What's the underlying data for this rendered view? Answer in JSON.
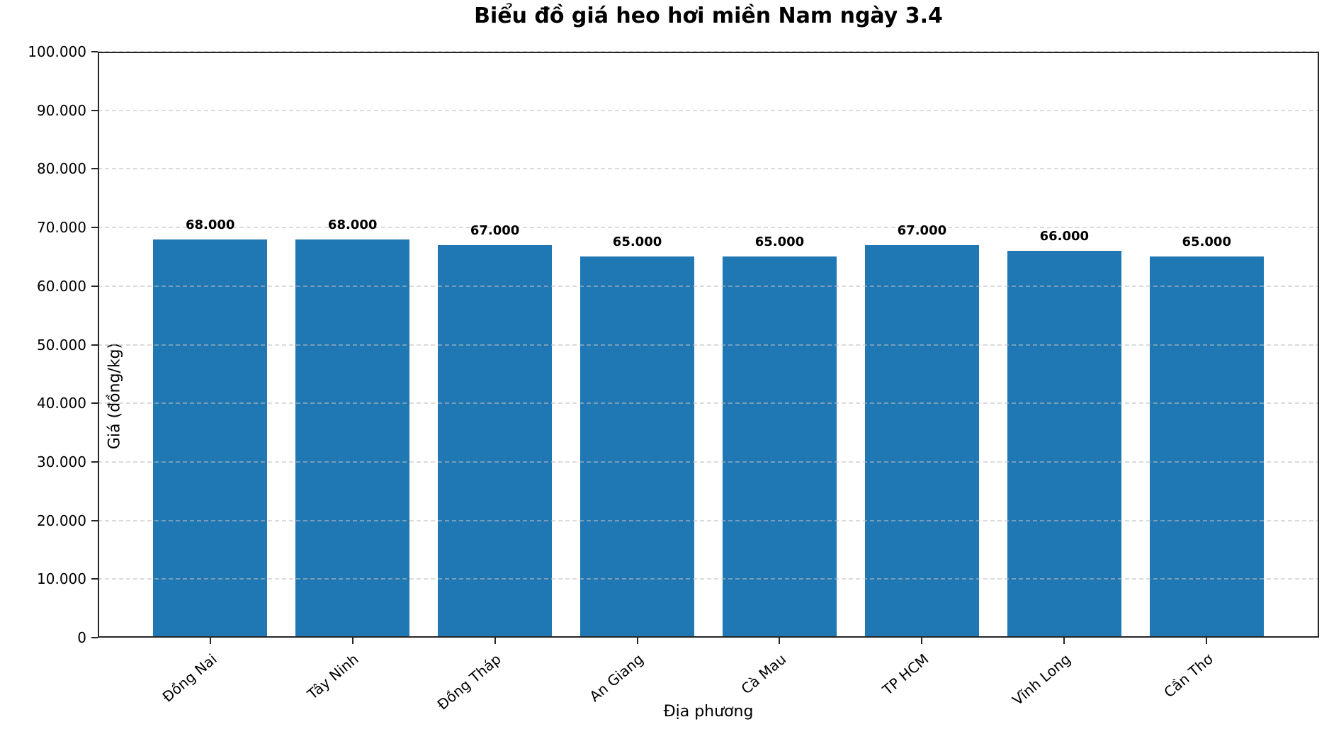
{
  "chart_data": {
    "type": "bar",
    "title": "Biểu đồ giá heo hơi miền Nam ngày 3.4",
    "xlabel": "Địa phương",
    "ylabel": "Giá (đồng/kg)",
    "categories": [
      "Đồng Nai",
      "Tây Ninh",
      "Đồng Tháp",
      "An Giang",
      "Cà Mau",
      "TP HCM",
      "Vĩnh Long",
      "Cần Thơ"
    ],
    "values": [
      68000,
      68000,
      67000,
      65000,
      65000,
      67000,
      66000,
      65000
    ],
    "value_labels": [
      "68.000",
      "68.000",
      "67.000",
      "65.000",
      "65.000",
      "67.000",
      "66.000",
      "65.000"
    ],
    "ylim": [
      0,
      100000
    ],
    "ytick_step": 10000,
    "ytick_labels": [
      "0",
      "10.000",
      "20.000",
      "30.000",
      "40.000",
      "50.000",
      "60.000",
      "70.000",
      "80.000",
      "90.000",
      "100.000"
    ],
    "grid": "horizontal-dashed",
    "legend": null,
    "bar_color": "#1f77b4",
    "frame_color": "#262626"
  }
}
